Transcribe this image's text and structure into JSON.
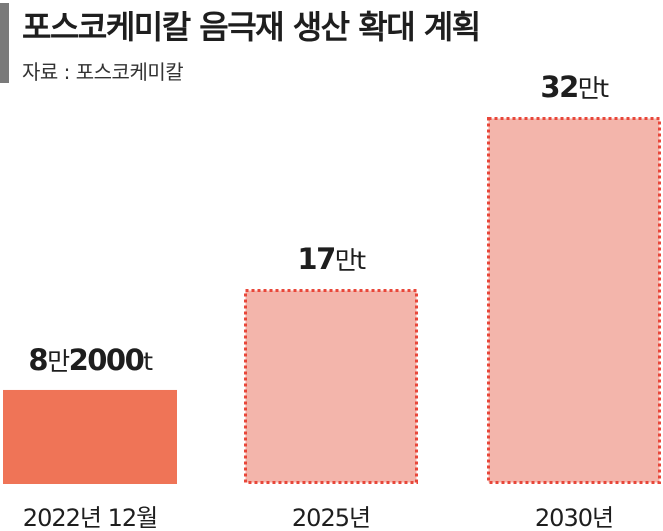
{
  "header": {
    "title": "포스코케미칼 음극재 생산 확대 계획",
    "source": "자료 : 포스코케미칼"
  },
  "colors": {
    "actual": "#ef7457",
    "planned_fill": "#f3b5ab",
    "planned_border": "#e8473a",
    "text": "#1e1e1e"
  },
  "chart_data": {
    "type": "bar",
    "title": "포스코케미칼 음극재 생산 확대 계획",
    "categories": [
      "2022년 12월",
      "2025년",
      "2030년"
    ],
    "values": [
      82000,
      170000,
      320000
    ],
    "value_labels": [
      {
        "number": "8",
        "mid": "만",
        "number2": "2000",
        "unit": "t"
      },
      {
        "number": "17",
        "mid": "만",
        "number2": "",
        "unit": "t"
      },
      {
        "number": "32",
        "mid": "만",
        "number2": "",
        "unit": "t"
      }
    ],
    "bar_styles": [
      "actual",
      "planned",
      "planned"
    ],
    "ylim": [
      0,
      320000
    ],
    "xlabel": "",
    "ylabel": "",
    "grid": false,
    "legend": "none"
  }
}
